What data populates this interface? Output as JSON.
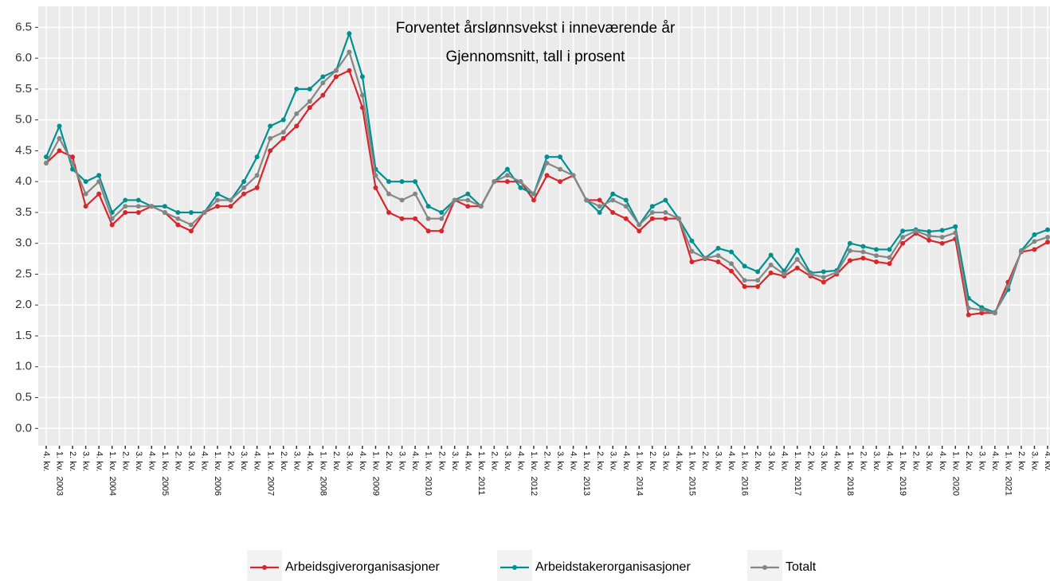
{
  "chart_data": {
    "type": "line",
    "title": "Forventet årslønnsvekst i inneværende år",
    "subtitle": "Gjennomsnitt, tall i prosent",
    "categories": [
      "4. kv.",
      "1. kv.  2003",
      "2. kv.",
      "3. kv.",
      "4. kv.",
      "1. kv.  2004",
      "2. kv.",
      "3. kv.",
      "4. kv.",
      "1. kv.  2005",
      "2. kv.",
      "3. kv.",
      "4. kv.",
      "1. kv.  2006",
      "2. kv.",
      "3. kv.",
      "4. kv.",
      "1. kv.  2007",
      "2. kv.",
      "3. kv.",
      "4. kv.",
      "1. kv.  2008",
      "2. kv.",
      "3. kv.",
      "4. kv.",
      "1. kv.  2009",
      "2. kv.",
      "3. kv.",
      "4. kv.",
      "1. kv.  2010",
      "2. kv.",
      "3. kv.",
      "4. kv.",
      "1. kv.  2011",
      "2. kv.",
      "3. kv.",
      "4. kv.",
      "1. kv.  2012",
      "2. kv.",
      "3. kv.",
      "4. kv.",
      "1. kv.  2013",
      "2. kv.",
      "3. kv.",
      "4. kv.",
      "1. kv.  2014",
      "2. kv.",
      "3. kv.",
      "4. kv.",
      "1. kv.  2015",
      "2. kv.",
      "3. kv.",
      "4. kv.",
      "1. kv.  2016",
      "2. kv.",
      "3. kv.",
      "4. kv.",
      "1. kv.  2017",
      "2. kv.",
      "3. kv.",
      "4. kv.",
      "1. kv.  2018",
      "2. kv.",
      "3. kv.",
      "4. kv.",
      "1. kv.  2019",
      "2. kv.",
      "3. kv.",
      "4. kv.",
      "1. kv.  2020",
      "2. kv.",
      "3. kv.",
      "4. kv.",
      "1. kv.  2021",
      "2. kv.",
      "3. kv.",
      "4. kv."
    ],
    "series": [
      {
        "name": "Arbeidsgiverorganisasjoner",
        "color": "#d7262c",
        "values": [
          4.3,
          4.5,
          4.4,
          3.6,
          3.8,
          3.3,
          3.5,
          3.5,
          3.6,
          3.5,
          3.3,
          3.2,
          3.5,
          3.6,
          3.6,
          3.8,
          3.9,
          4.5,
          4.7,
          4.9,
          5.2,
          5.4,
          5.7,
          5.8,
          5.2,
          3.9,
          3.5,
          3.4,
          3.4,
          3.2,
          3.2,
          3.7,
          3.6,
          3.6,
          4.0,
          4.0,
          4.0,
          3.7,
          4.1,
          4.0,
          4.1,
          3.7,
          3.7,
          3.5,
          3.4,
          3.2,
          3.4,
          3.4,
          3.4,
          2.7,
          2.75,
          2.7,
          2.55,
          2.3,
          2.3,
          2.52,
          2.47,
          2.6,
          2.47,
          2.37,
          2.5,
          2.72,
          2.76,
          2.7,
          2.67,
          3.0,
          3.16,
          3.05,
          3.0,
          3.07,
          1.84,
          1.87,
          1.87,
          2.37,
          2.86,
          2.9,
          3.02
        ]
      },
      {
        "name": "Arbeidstakerorganisasjoner",
        "color": "#00908f",
        "values": [
          4.4,
          4.9,
          4.2,
          4.0,
          4.1,
          3.5,
          3.7,
          3.7,
          3.6,
          3.6,
          3.5,
          3.5,
          3.5,
          3.8,
          3.7,
          4.0,
          4.4,
          4.9,
          5.0,
          5.5,
          5.5,
          5.7,
          5.8,
          6.4,
          5.7,
          4.2,
          4.0,
          4.0,
          4.0,
          3.6,
          3.5,
          3.7,
          3.8,
          3.6,
          4.0,
          4.2,
          3.9,
          3.8,
          4.4,
          4.4,
          4.1,
          3.7,
          3.5,
          3.8,
          3.7,
          3.3,
          3.6,
          3.7,
          3.4,
          3.04,
          2.76,
          2.92,
          2.86,
          2.63,
          2.54,
          2.81,
          2.55,
          2.89,
          2.52,
          2.54,
          2.56,
          3.0,
          2.95,
          2.9,
          2.9,
          3.2,
          3.22,
          3.19,
          3.21,
          3.27,
          2.11,
          1.96,
          1.88,
          2.25,
          2.88,
          3.14,
          3.22
        ]
      },
      {
        "name": "Totalt",
        "color": "#868686",
        "values": [
          4.3,
          4.7,
          4.3,
          3.8,
          4.0,
          3.4,
          3.6,
          3.6,
          3.6,
          3.5,
          3.4,
          3.3,
          3.5,
          3.7,
          3.7,
          3.9,
          4.1,
          4.7,
          4.8,
          5.1,
          5.3,
          5.6,
          5.8,
          6.1,
          5.4,
          4.1,
          3.8,
          3.7,
          3.8,
          3.4,
          3.4,
          3.7,
          3.7,
          3.6,
          4.0,
          4.1,
          4.0,
          3.8,
          4.3,
          4.2,
          4.1,
          3.7,
          3.6,
          3.7,
          3.6,
          3.3,
          3.5,
          3.5,
          3.4,
          2.87,
          2.76,
          2.8,
          2.67,
          2.4,
          2.4,
          2.65,
          2.5,
          2.74,
          2.5,
          2.45,
          2.53,
          2.88,
          2.86,
          2.8,
          2.77,
          3.1,
          3.2,
          3.12,
          3.1,
          3.17,
          1.95,
          1.92,
          1.87,
          2.3,
          2.87,
          3.03,
          3.1
        ]
      }
    ],
    "ylim": [
      -0.28,
      6.84
    ],
    "yticks": [
      {
        "value": 0,
        "label": "0.0"
      },
      0.5,
      {
        "value": 1,
        "label": "1.0"
      },
      1.5,
      {
        "value": 2,
        "label": "2.0"
      },
      2.5,
      {
        "value": 3,
        "label": "3.0"
      },
      3.5,
      {
        "value": 4,
        "label": "4.0"
      },
      4.5,
      {
        "value": 5,
        "label": "5.0"
      },
      5.5,
      {
        "value": 6,
        "label": "6.0"
      },
      6.5
    ],
    "grid": true,
    "legend": "bottom"
  }
}
